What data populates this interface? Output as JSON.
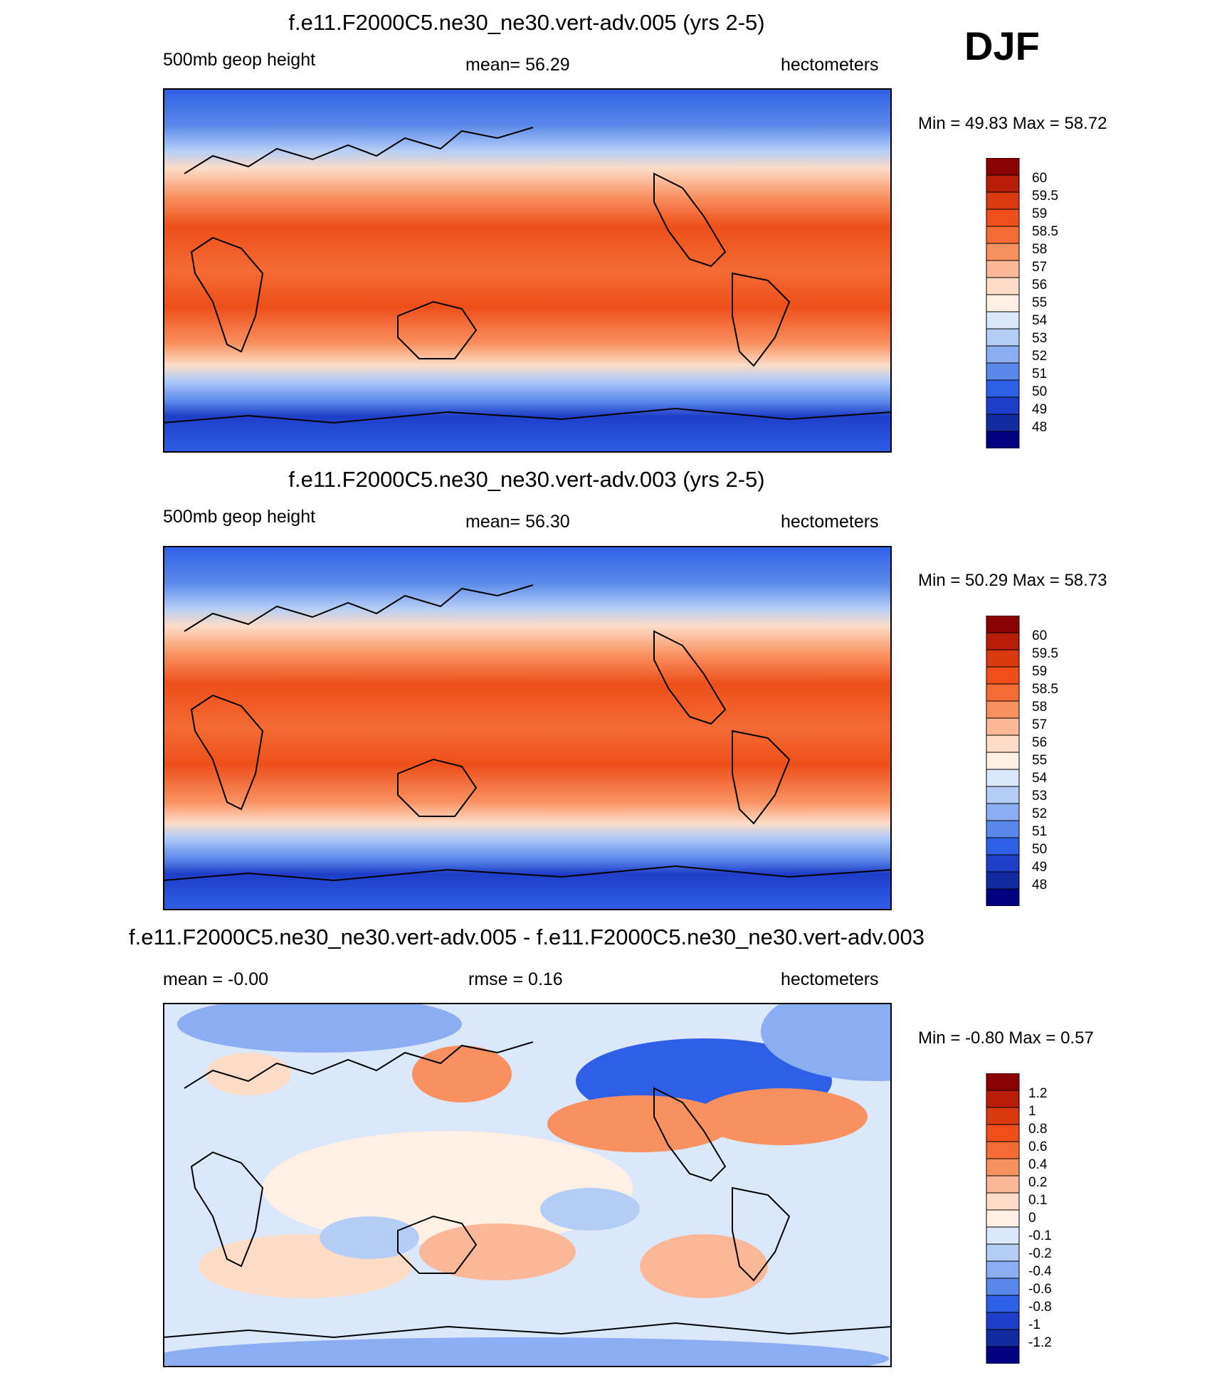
{
  "season": "DJF",
  "chart_data": [
    {
      "type": "heatmap",
      "title": "f.e11.F2000C5.ne30_ne30.vert-adv.005 (yrs 2-5)",
      "variable": "500mb geop height",
      "stat": "mean=  56.29",
      "units": "hectometers",
      "minmax": "Min =  49.83 Max =  58.72",
      "min": 49.83,
      "max": 58.72,
      "mean": 56.29,
      "colorbar_labels": [
        "60",
        "59.5",
        "59",
        "58.5",
        "58",
        "57",
        "56",
        "55",
        "54",
        "53",
        "52",
        "51",
        "50",
        "49",
        "48"
      ],
      "colorbar_colors": [
        "#8b0000",
        "#b81d0a",
        "#d93a10",
        "#ee4f1a",
        "#f46b34",
        "#f9905f",
        "#fbb899",
        "#fddcc6",
        "#fef0e4",
        "#dbe8fb",
        "#b3cdf7",
        "#8aaef1",
        "#5a88ea",
        "#2e5fe6",
        "#1f3ec8",
        "#122aa0",
        "#000080"
      ]
    },
    {
      "type": "heatmap",
      "title": "f.e11.F2000C5.ne30_ne30.vert-adv.003 (yrs 2-5)",
      "variable": "500mb geop height",
      "stat": "mean=  56.30",
      "units": "hectometers",
      "minmax": "Min =  50.29 Max =  58.73",
      "min": 50.29,
      "max": 58.73,
      "mean": 56.3,
      "colorbar_labels": [
        "60",
        "59.5",
        "59",
        "58.5",
        "58",
        "57",
        "56",
        "55",
        "54",
        "53",
        "52",
        "51",
        "50",
        "49",
        "48"
      ],
      "colorbar_colors": [
        "#8b0000",
        "#b81d0a",
        "#d93a10",
        "#ee4f1a",
        "#f46b34",
        "#f9905f",
        "#fbb899",
        "#fddcc6",
        "#fef0e4",
        "#dbe8fb",
        "#b3cdf7",
        "#8aaef1",
        "#5a88ea",
        "#2e5fe6",
        "#1f3ec8",
        "#122aa0",
        "#000080"
      ]
    },
    {
      "type": "heatmap",
      "title": "f.e11.F2000C5.ne30_ne30.vert-adv.005 - f.e11.F2000C5.ne30_ne30.vert-adv.003",
      "stat": "mean =  -0.00",
      "stat2": "rmse =   0.16",
      "units": "hectometers",
      "minmax": "Min =  -0.80 Max =   0.57",
      "min": -0.8,
      "max": 0.57,
      "mean": -0.0,
      "rmse": 0.16,
      "colorbar_labels": [
        "1.2",
        "1",
        "0.8",
        "0.6",
        "0.4",
        "0.2",
        "0.1",
        "0",
        "-0.1",
        "-0.2",
        "-0.4",
        "-0.6",
        "-0.8",
        "-1",
        "-1.2"
      ],
      "colorbar_colors": [
        "#8b0000",
        "#b81d0a",
        "#d93a10",
        "#ee4f1a",
        "#f46b34",
        "#f9905f",
        "#fbb899",
        "#fddcc6",
        "#fef0e4",
        "#dbe8fb",
        "#b3cdf7",
        "#8aaef1",
        "#5a88ea",
        "#2e5fe6",
        "#1f3ec8",
        "#122aa0",
        "#000080"
      ]
    }
  ]
}
